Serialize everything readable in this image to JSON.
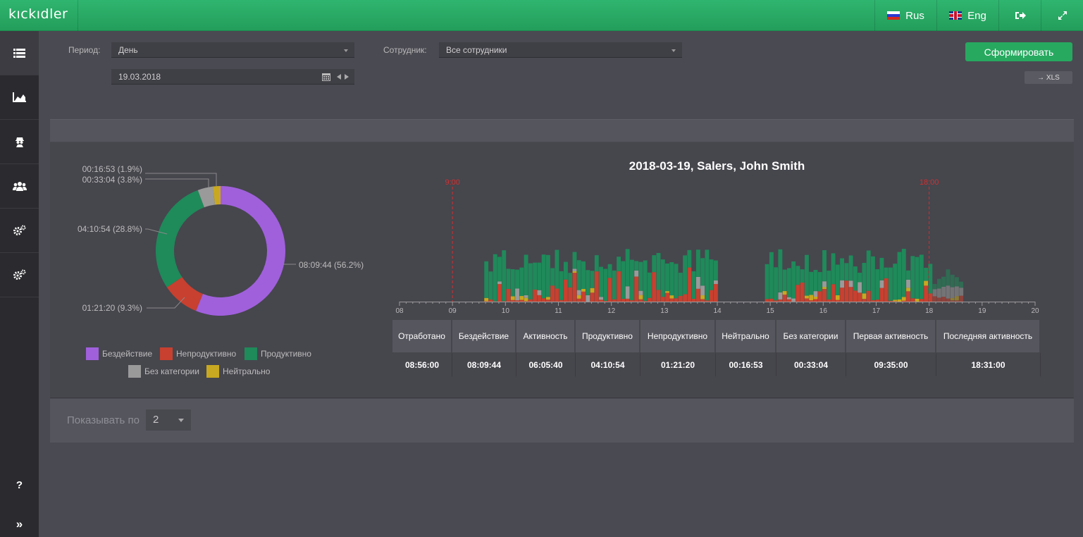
{
  "app": {
    "logo": "KICKIDLER"
  },
  "topnav": {
    "lang_ru": "Rus",
    "lang_en": "Eng"
  },
  "filters": {
    "period_label": "Период:",
    "period_value": "День",
    "date_value": "19.03.2018",
    "employee_label": "Сотрудник:",
    "employee_value": "Все сотрудники",
    "generate_button": "Сформировать",
    "xls_button": "→ XLS"
  },
  "donut": {
    "labels": [
      {
        "text": "08:09:44 (56.2%)"
      },
      {
        "text": "01:21:20 (9.3%)"
      },
      {
        "text": "04:10:54 (28.8%)"
      },
      {
        "text": "00:33:04 (3.8%)"
      },
      {
        "text": "00:16:53 (1.9%)"
      }
    ],
    "slices": [
      {
        "category": "Бездействие",
        "percent": 56.2,
        "color": "#a060dc"
      },
      {
        "category": "Непродуктивно",
        "percent": 9.3,
        "color": "#c8402f"
      },
      {
        "category": "Продуктивно",
        "percent": 28.8,
        "color": "#1f8a5a"
      },
      {
        "category": "Без категории",
        "percent": 3.8,
        "color": "#9a9a9a"
      },
      {
        "category": "Нейтрально",
        "percent": 1.9,
        "color": "#c8a820"
      }
    ]
  },
  "legend": [
    {
      "label": "Бездействие",
      "color": "#a060dc"
    },
    {
      "label": "Непродуктивно",
      "color": "#c8402f"
    },
    {
      "label": "Продуктивно",
      "color": "#1f8a5a"
    },
    {
      "label": "Без категории",
      "color": "#9a9a9a"
    },
    {
      "label": "Нейтрально",
      "color": "#c8a820"
    }
  ],
  "chart_data": {
    "type": "bar",
    "title": "2018-03-19, Salers, John Smith",
    "x_ticks": [
      "08",
      "09",
      "10",
      "11",
      "12",
      "13",
      "14",
      "15",
      "16",
      "17",
      "18",
      "19",
      "20"
    ],
    "xlim": [
      8,
      20
    ],
    "markers": [
      {
        "label": "9:00",
        "x": 9,
        "color": "#d03030"
      },
      {
        "label": "18:00",
        "x": 18,
        "color": "#d03030"
      }
    ],
    "series": [
      {
        "name": "Продуктивно"
      },
      {
        "name": "Непродуктивно"
      },
      {
        "name": "Нейтрально"
      },
      {
        "name": "Без категории"
      }
    ],
    "active_ranges": [
      [
        9.6,
        14.0
      ],
      [
        14.9,
        18.6
      ]
    ]
  },
  "stats": {
    "headers": [
      "Отработано",
      "Бездействие",
      "Активность",
      "Продуктивно",
      "Непродуктивно",
      "Нейтрально",
      "Без категории",
      "Первая активность",
      "Последняя активность"
    ],
    "values": [
      "08:56:00",
      "08:09:44",
      "06:05:40",
      "04:10:54",
      "01:21:20",
      "00:16:53",
      "00:33:04",
      "09:35:00",
      "18:31:00"
    ]
  },
  "pager": {
    "label": "Показывать по",
    "value": "2"
  },
  "sidebar": {
    "help": "?",
    "expand": "»"
  }
}
